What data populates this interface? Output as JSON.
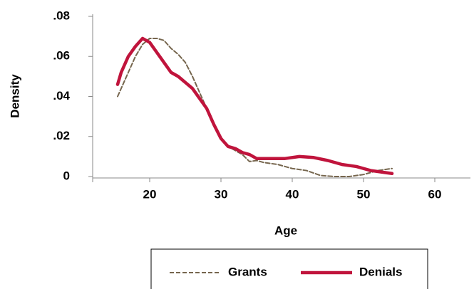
{
  "chart_data": {
    "type": "line",
    "x_label": "Age",
    "y_label": "Density",
    "xlim": [
      12,
      65
    ],
    "xticks": [
      20,
      30,
      40,
      50,
      60
    ],
    "ylim": [
      0,
      0.08
    ],
    "yticks": [
      0,
      {
        "value": 0.02,
        "label": ".02"
      },
      {
        "value": 0.04,
        "label": ".04"
      },
      {
        "value": 0.06,
        "label": ".06"
      },
      {
        "value": 0.08,
        "label": ".08"
      }
    ],
    "series": [
      {
        "name": "Grants",
        "color": "#76664e",
        "dash": true,
        "x": [
          15.5,
          17,
          18,
          19,
          20,
          21,
          22,
          23,
          24,
          25,
          26,
          27,
          28,
          29,
          30,
          31,
          32,
          33,
          34,
          35,
          36,
          38,
          40,
          42,
          44,
          46,
          48,
          50,
          52,
          54
        ],
        "values": [
          0.04,
          0.052,
          0.06,
          0.066,
          0.069,
          0.069,
          0.068,
          0.064,
          0.061,
          0.057,
          0.05,
          0.042,
          0.034,
          0.026,
          0.019,
          0.015,
          0.013,
          0.011,
          0.0075,
          0.008,
          0.007,
          0.006,
          0.004,
          0.003,
          0.0005,
          0,
          0,
          0.001,
          0.003,
          0.004
        ]
      },
      {
        "name": "Denials",
        "color": "#c0143c",
        "dash": false,
        "x": [
          15.5,
          16,
          17,
          18,
          19,
          20,
          21,
          22,
          23,
          24,
          25,
          26,
          27,
          28,
          29,
          30,
          31,
          32,
          33,
          34,
          35,
          37,
          39,
          41,
          43,
          45,
          47,
          49,
          51,
          53,
          54
        ],
        "values": [
          0.046,
          0.052,
          0.06,
          0.065,
          0.069,
          0.067,
          0.062,
          0.057,
          0.052,
          0.05,
          0.047,
          0.044,
          0.039,
          0.034,
          0.026,
          0.019,
          0.015,
          0.014,
          0.012,
          0.011,
          0.009,
          0.009,
          0.009,
          0.01,
          0.0095,
          0.008,
          0.006,
          0.005,
          0.003,
          0.002,
          0.0015
        ]
      }
    ]
  }
}
